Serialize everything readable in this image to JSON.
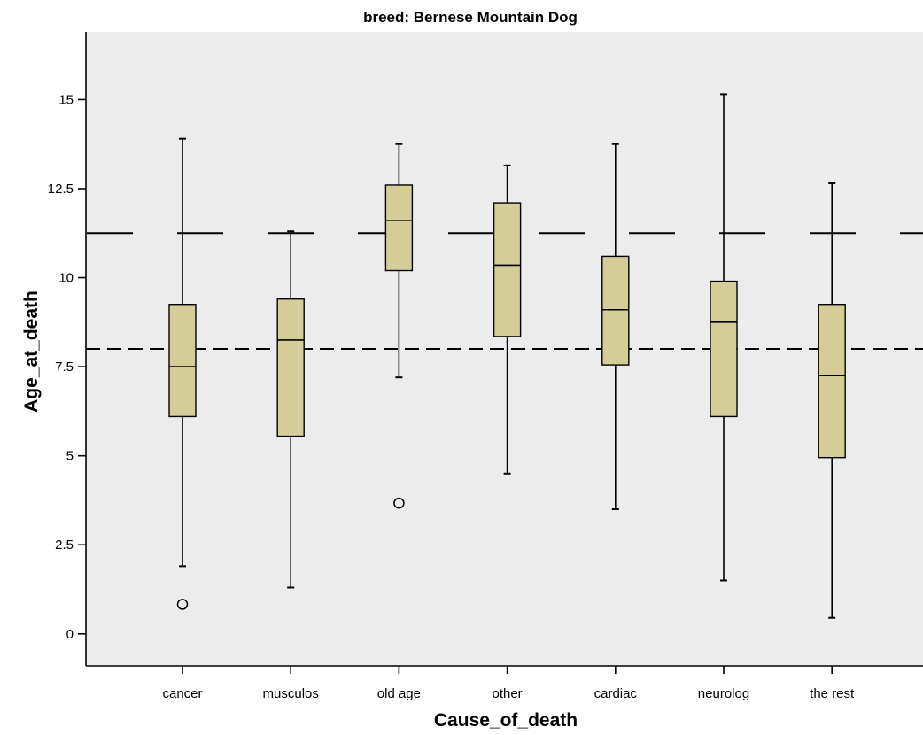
{
  "chart_data": {
    "type": "boxplot",
    "title": "breed: Bernese Mountain Dog",
    "xlabel": "Cause_of_death",
    "ylabel": "Age_at_death",
    "ylim": [
      -0.9,
      16.9
    ],
    "yticks": [
      0,
      2.5,
      5,
      7.5,
      10,
      12.5,
      15
    ],
    "ytick_labels": [
      "0",
      "2.5",
      "5",
      "7.5",
      "10",
      "12.5",
      "15"
    ],
    "categories": [
      "cancer",
      "musculos",
      "old age",
      "other",
      "cardiac",
      "neurolog",
      "the rest"
    ],
    "boxes": [
      {
        "category": "cancer",
        "whisker_low": 1.9,
        "q1": 6.1,
        "median": 7.5,
        "q3": 9.25,
        "whisker_high": 13.9,
        "outliers": [
          0.83
        ]
      },
      {
        "category": "musculos",
        "whisker_low": 1.3,
        "q1": 5.55,
        "median": 8.25,
        "q3": 9.4,
        "whisker_high": 11.3,
        "outliers": []
      },
      {
        "category": "old age",
        "whisker_low": 7.2,
        "q1": 10.2,
        "median": 11.6,
        "q3": 12.6,
        "whisker_high": 13.75,
        "outliers": [
          3.67
        ]
      },
      {
        "category": "other",
        "whisker_low": 4.5,
        "q1": 8.35,
        "median": 10.35,
        "q3": 12.1,
        "whisker_high": 13.15,
        "outliers": []
      },
      {
        "category": "cardiac",
        "whisker_low": 3.5,
        "q1": 7.55,
        "median": 9.1,
        "q3": 10.6,
        "whisker_high": 13.75,
        "outliers": []
      },
      {
        "category": "neurolog",
        "whisker_low": 1.5,
        "q1": 6.1,
        "median": 8.75,
        "q3": 9.9,
        "whisker_high": 15.15,
        "outliers": []
      },
      {
        "category": "the rest",
        "whisker_low": 0.45,
        "q1": 4.95,
        "median": 7.25,
        "q3": 9.25,
        "whisker_high": 12.65,
        "outliers": []
      }
    ],
    "reference_lines": [
      {
        "y": 11.25,
        "style": "long-dash"
      },
      {
        "y": 8.0,
        "style": "short-dash"
      }
    ],
    "grid": false,
    "colors": {
      "plot_background": "#ececec",
      "box_fill": "#d4cd98",
      "line": "#000000"
    }
  }
}
